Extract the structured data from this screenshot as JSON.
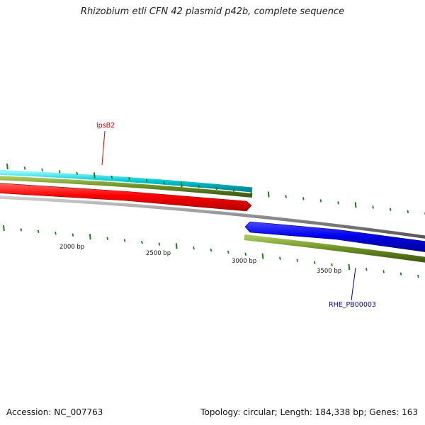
{
  "title": "Rhizobium etli CFN 42 plasmid p42b, complete sequence",
  "footer": {
    "accession": "Accession: NC_007763",
    "summary": "Topology: circular; Length: 184,338 bp; Genes: 163"
  },
  "colors": {
    "backbone": "#888888",
    "tick": "#1f7a1f",
    "cds_forward": "#ff0000",
    "cds_reverse": "#0000ee",
    "gene_forward": "#6b8e23",
    "gene_reverse": "#6b8e23",
    "feature_cyan": "#00c8d0",
    "label_forward": "#cc0000",
    "label_reverse": "#0000aa"
  },
  "scale": {
    "labels": [
      "2000 bp",
      "2500 bp",
      "3000 bp",
      "3500 bp"
    ]
  },
  "features": {
    "forward_gene": {
      "label": "lpsB2",
      "strand": "forward",
      "color": "#ff0000"
    },
    "reverse_gene": {
      "label": "RHE_PB00003",
      "strand": "reverse",
      "color": "#0000ee"
    }
  }
}
